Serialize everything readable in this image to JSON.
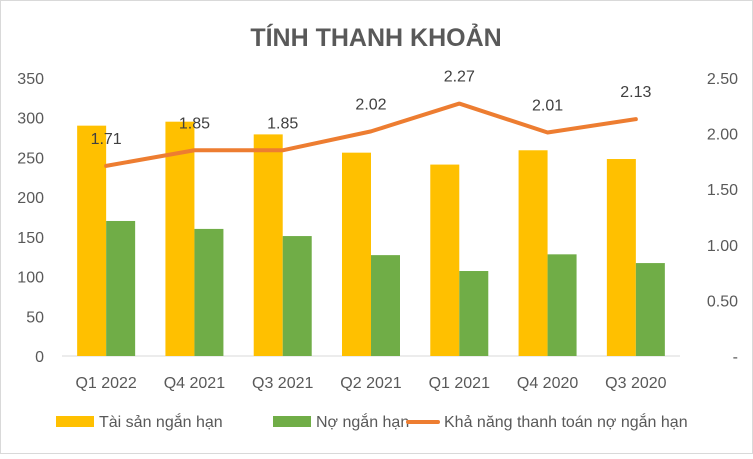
{
  "chart_data": {
    "type": "bar",
    "title": "TÍNH THANH KHOẢN",
    "categories": [
      "Q1 2022",
      "Q4 2021",
      "Q3 2021",
      "Q2 2021",
      "Q1 2021",
      "Q4 2020",
      "Q3 2020"
    ],
    "series": [
      {
        "name": "Tài sản ngắn hạn",
        "type": "bar",
        "axis": "left",
        "color": "#FFC000",
        "values": [
          290,
          295,
          279,
          256,
          241,
          259,
          248
        ]
      },
      {
        "name": "Nợ ngắn hạn",
        "type": "bar",
        "axis": "left",
        "color": "#70AD47",
        "values": [
          170,
          160,
          151,
          127,
          107,
          128,
          117
        ]
      },
      {
        "name": "Khả năng thanh toán nợ ngắn hạn",
        "type": "line",
        "axis": "right",
        "color": "#ED7D31",
        "values": [
          1.71,
          1.85,
          1.85,
          2.02,
          2.27,
          2.01,
          2.13
        ],
        "labels": [
          "1.71",
          "1.85",
          "1.85",
          "2.02",
          "2.27",
          "2.01",
          "2.13"
        ]
      }
    ],
    "y_left": {
      "ylim": [
        0,
        350
      ],
      "ticks": [
        "0",
        "50",
        "100",
        "150",
        "200",
        "250",
        "300",
        "350"
      ]
    },
    "y_right": {
      "ylim": [
        0,
        2.5
      ],
      "ticks": [
        "-",
        "0.50",
        "1.00",
        "1.50",
        "2.00",
        "2.50"
      ]
    },
    "grid": false,
    "legend_position": "bottom"
  }
}
